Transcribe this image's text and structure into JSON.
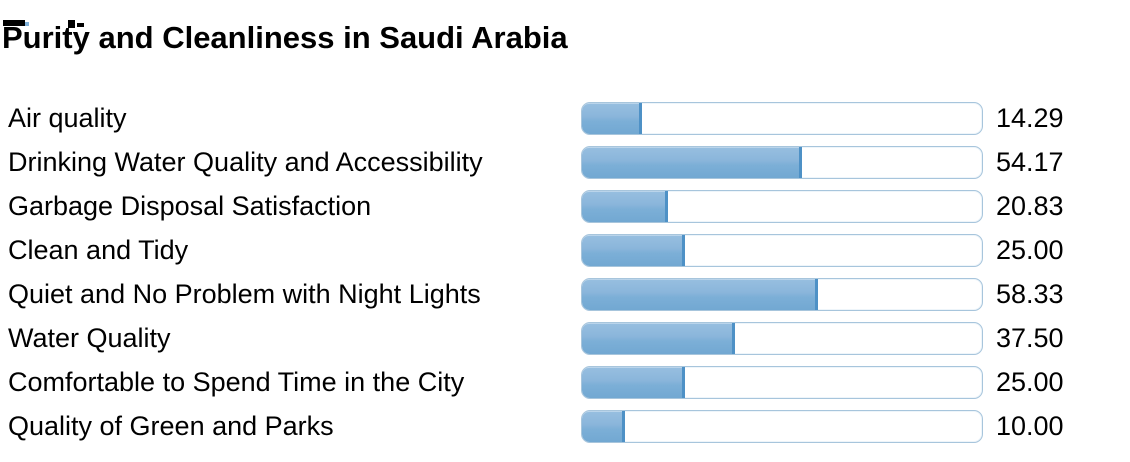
{
  "chart_data": {
    "type": "bar",
    "orientation": "horizontal",
    "title": "Purity and Cleanliness in Saudi Arabia",
    "categories": [
      "Air quality",
      "Drinking Water Quality and Accessibility",
      "Garbage Disposal Satisfaction",
      "Clean and Tidy",
      "Quiet and No Problem with Night Lights",
      "Water Quality",
      "Comfortable to Spend Time in the City",
      "Quality of Green and Parks"
    ],
    "values": [
      14.29,
      54.17,
      20.83,
      25.0,
      58.33,
      37.5,
      25.0,
      10.0
    ],
    "value_labels": [
      "14.29",
      "54.17",
      "20.83",
      "25.00",
      "58.33",
      "37.50",
      "25.00",
      "10.00"
    ],
    "xlim": [
      0,
      100
    ],
    "grid": false,
    "legend": "none",
    "bar_style": "meter-gauge",
    "colors": {
      "bar_fill_top": "#97bfe0",
      "bar_fill_bottom": "#72a8d2",
      "bar_fill_edge": "#4e91c6",
      "track_background": "#ffffff",
      "track_border": "#a7c5dc",
      "text": "#000000"
    }
  }
}
